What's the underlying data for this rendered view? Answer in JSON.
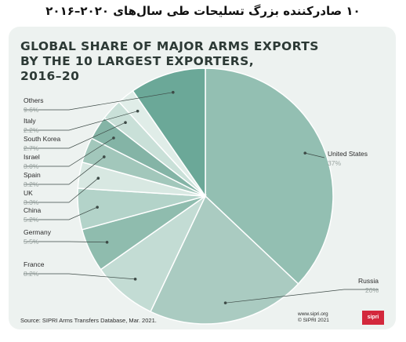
{
  "header": {
    "title": "۱۰ صادرکننده بزرگ تسلیحات طی سال‌های ۲۰۲۰–۲۰۱۶"
  },
  "chart_data": {
    "type": "pie",
    "title_lines": [
      "GLOBAL SHARE OF MAJOR ARMS EXPORTS",
      "BY THE 10 LARGEST EXPORTERS,",
      "2016–20"
    ],
    "slices": [
      {
        "name": "United States",
        "value": 37,
        "label": "37%",
        "color": "#93bfb2"
      },
      {
        "name": "Russia",
        "value": 20,
        "label": "20%",
        "color": "#aacbc1"
      },
      {
        "name": "France",
        "value": 8.2,
        "label": "8.2%",
        "color": "#c3dcd4"
      },
      {
        "name": "Germany",
        "value": 5.5,
        "label": "5.5%",
        "color": "#8fbcae"
      },
      {
        "name": "China",
        "value": 5.2,
        "label": "5.2%",
        "color": "#b3d3c9"
      },
      {
        "name": "UK",
        "value": 3.3,
        "label": "3.3%",
        "color": "#d8e8e2"
      },
      {
        "name": "Spain",
        "value": 3.2,
        "label": "3.2%",
        "color": "#a2c7bb"
      },
      {
        "name": "Israel",
        "value": 3.0,
        "label": "3.0%",
        "color": "#84b4a6"
      },
      {
        "name": "South Korea",
        "value": 2.7,
        "label": "2.7%",
        "color": "#c9e0d8"
      },
      {
        "name": "Italy",
        "value": 2.2,
        "label": "2.2%",
        "color": "#e0ede8"
      },
      {
        "name": "Others",
        "value": 9.6,
        "label": "9.6%",
        "color": "#6ba898"
      }
    ]
  },
  "footer": {
    "source": "Source: SIPRI Arms Transfers Database, Mar. 2021.",
    "website": "www.sipri.org",
    "copyright": "© SIPRI 2021",
    "logo_text": "sipri"
  }
}
